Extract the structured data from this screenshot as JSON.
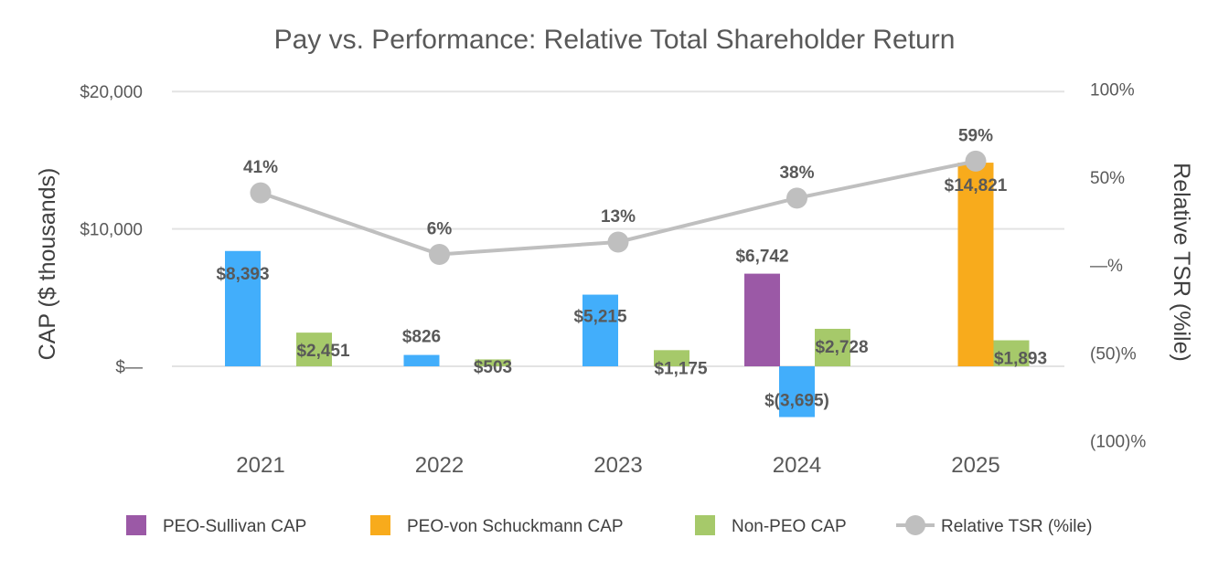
{
  "chart_data": {
    "type": "bar",
    "title": "Pay vs. Performance: Relative Total Shareholder Return",
    "categories": [
      "2021",
      "2022",
      "2023",
      "2024",
      "2025"
    ],
    "left_axis": {
      "label": "CAP ($ thousands)",
      "range": [
        -5000,
        20000
      ],
      "ticks": [
        {
          "value": 20000,
          "label": "$20,000"
        },
        {
          "value": 10000,
          "label": "$10,000"
        },
        {
          "value": 0,
          "label": "$—"
        }
      ]
    },
    "right_axis": {
      "label": "Relative TSR (%ile)",
      "range": [
        -100,
        100
      ],
      "ticks": [
        {
          "value": 100,
          "label": "100%"
        },
        {
          "value": 50,
          "label": "50%"
        },
        {
          "value": 0,
          "label": "—%"
        },
        {
          "value": -50,
          "label": "(50)%"
        },
        {
          "value": -100,
          "label": "(100)%"
        }
      ]
    },
    "grid": true,
    "legend_position": "bottom",
    "bar_series": [
      {
        "name": "PEO-Sullivan CAP",
        "color": "#9b59a6",
        "bars": [
          {
            "category": "2021",
            "value": 8393,
            "label": "$8,393",
            "color": "#42aefb"
          },
          {
            "category": "2022",
            "value": 826,
            "label": "$826",
            "color": "#42aefb"
          },
          {
            "category": "2023",
            "value": 5215,
            "label": "$5,215",
            "color": "#42aefb"
          },
          {
            "category": "2024",
            "value": 6742,
            "label": "$6,742",
            "color": "#9b59a6"
          }
        ]
      },
      {
        "name": "PEO-von Schuckmann CAP",
        "color": "#f8ab1c",
        "bars": [
          {
            "category": "2024",
            "value": -3695,
            "label": "$(3,695)",
            "color": "#42aefb"
          },
          {
            "category": "2025",
            "value": 14821,
            "label": "$14,821",
            "color": "#f8ab1c"
          }
        ]
      },
      {
        "name": "Non-PEO CAP",
        "color": "#a6c96a",
        "bars": [
          {
            "category": "2021",
            "value": 2451,
            "label": "$2,451",
            "color": "#a6c96a"
          },
          {
            "category": "2022",
            "value": 503,
            "label": "$503",
            "color": "#a6c96a"
          },
          {
            "category": "2023",
            "value": 1175,
            "label": "$1,175",
            "color": "#a6c96a"
          },
          {
            "category": "2024",
            "value": 2728,
            "label": "$2,728",
            "color": "#a6c96a"
          },
          {
            "category": "2025",
            "value": 1893,
            "label": "$1,893",
            "color": "#a6c96a"
          }
        ]
      }
    ],
    "line_series": {
      "name": "Relative TSR (%ile)",
      "color": "#bfbfbf",
      "values": [
        41,
        6,
        13,
        38,
        59
      ],
      "labels": [
        "41%",
        "6%",
        "13%",
        "38%",
        "59%"
      ]
    }
  }
}
